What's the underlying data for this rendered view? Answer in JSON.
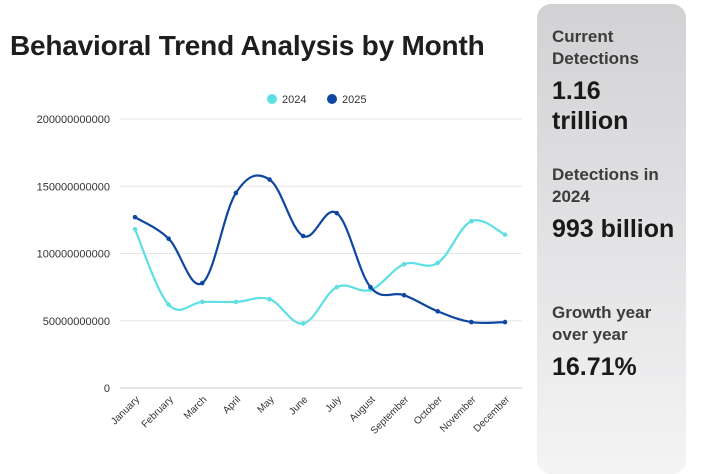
{
  "title": "Behavioral Trend Analysis by Month",
  "sidebar": {
    "stats": [
      {
        "label": "Current Detections",
        "value": "1.16 trillion"
      },
      {
        "label": "Detections in 2024",
        "value": "993 billion"
      },
      {
        "label": "Growth year over year",
        "value": "16.71%"
      }
    ]
  },
  "chart_data": {
    "type": "line",
    "title": "Behavioral Trend Analysis by Month",
    "xlabel": "",
    "ylabel": "",
    "ylim": [
      0,
      200000000000
    ],
    "yticks": [
      0,
      50000000000,
      100000000000,
      150000000000,
      200000000000
    ],
    "ytick_labels": [
      "0",
      "50000000000",
      "100000000000",
      "150000000000",
      "200000000000"
    ],
    "grid": true,
    "legend": "top",
    "categories": [
      "January",
      "February",
      "March",
      "April",
      "May",
      "June",
      "July",
      "August",
      "September",
      "October",
      "November",
      "December"
    ],
    "series": [
      {
        "name": "2024",
        "color": "#5ddfe3",
        "values": [
          118000000000,
          62000000000,
          64000000000,
          64000000000,
          66000000000,
          48000000000,
          75000000000,
          73000000000,
          92000000000,
          93000000000,
          124000000000,
          114000000000
        ]
      },
      {
        "name": "2025",
        "color": "#0f47a0",
        "values": [
          127000000000,
          111000000000,
          78000000000,
          145000000000,
          155000000000,
          113000000000,
          130000000000,
          75000000000,
          69000000000,
          57000000000,
          49000000000,
          49000000000
        ]
      }
    ]
  }
}
